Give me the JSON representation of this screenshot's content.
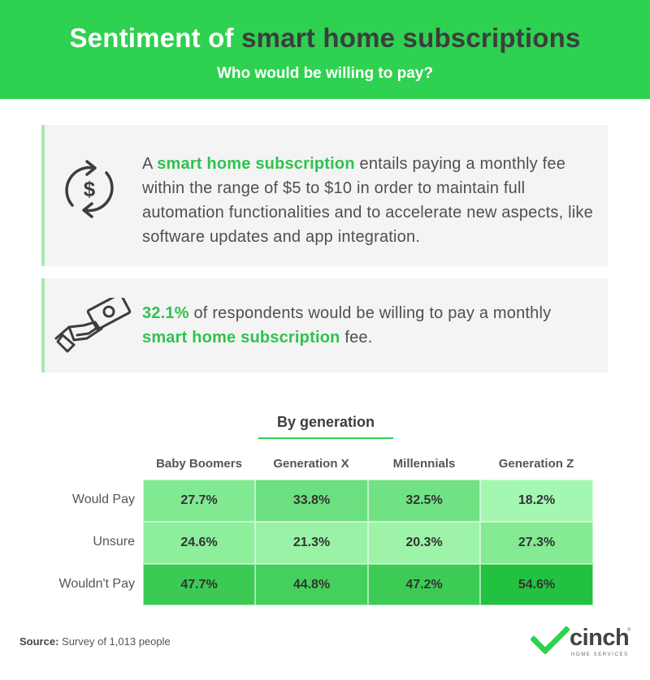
{
  "header": {
    "title_part1": "Sentiment of",
    "title_part2": "smart home subscriptions",
    "subtitle": "Who would be willing to pay?"
  },
  "card1": {
    "icon": "dollar-cycle-icon",
    "text_pre": "A",
    "highlight": "smart home subscription",
    "text_post": "entails paying a monthly fee within the range of $5 to $10 in order to maintain full automation functionalities and to accelerate new aspects, like software updates and app integration."
  },
  "card2": {
    "icon": "hand-money-icon",
    "highlight1": "32.1%",
    "text_mid": "of respondents would be willing to pay a monthly",
    "highlight2": "smart home subscription",
    "text_post": "fee."
  },
  "chart_data": {
    "type": "heatmap",
    "title": "By generation",
    "columns": [
      "Baby Boomers",
      "Generation X",
      "Millennials",
      "Generation Z"
    ],
    "rows": [
      "Would Pay",
      "Unsure",
      "Wouldn't Pay"
    ],
    "values": [
      [
        27.7,
        33.8,
        32.5,
        18.2
      ],
      [
        24.6,
        21.3,
        20.3,
        27.3
      ],
      [
        47.7,
        44.8,
        47.2,
        54.6
      ]
    ],
    "labels": [
      [
        "27.7%",
        "33.8%",
        "32.5%",
        "18.2%"
      ],
      [
        "24.6%",
        "21.3%",
        "20.3%",
        "27.3%"
      ],
      [
        "47.7%",
        "44.8%",
        "47.2%",
        "54.6%"
      ]
    ],
    "colors": {
      "low": "#a4f7b0",
      "high": "#22c13f"
    }
  },
  "footer": {
    "source_label": "Source:",
    "source_text": "Survey of 1,013 people",
    "logo_word": "cinch",
    "logo_sub": "HOME SERVICES",
    "logo_mark": "®"
  }
}
